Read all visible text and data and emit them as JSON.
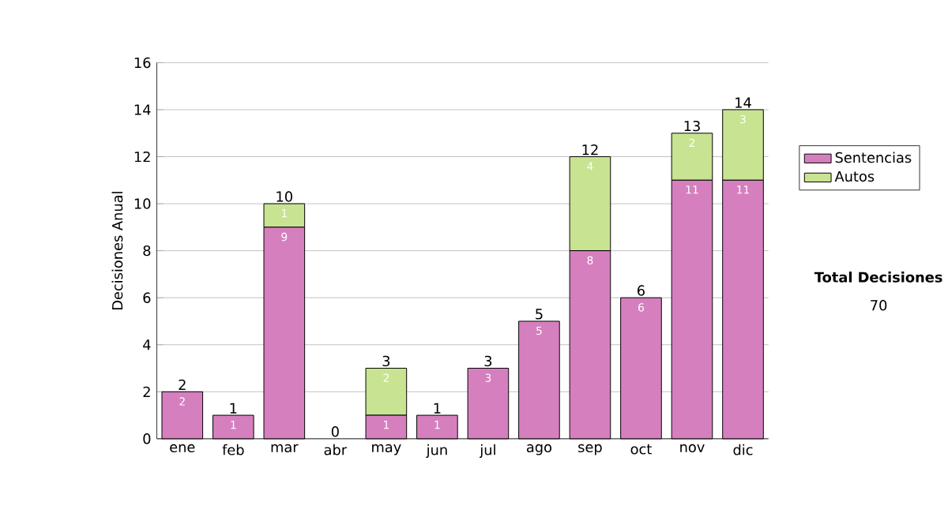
{
  "chart_data": {
    "type": "bar",
    "stacked": true,
    "ylabel": "Decisiones Anual",
    "categories": [
      "ene",
      "feb",
      "mar",
      "abr",
      "may",
      "jun",
      "jul",
      "ago",
      "sep",
      "oct",
      "nov",
      "dic"
    ],
    "series": [
      {
        "name": "Sentencias",
        "color": "#d67fbf",
        "values": [
          2,
          1,
          9,
          0,
          1,
          1,
          3,
          5,
          8,
          6,
          11,
          11
        ],
        "value_labels": [
          "2",
          "1",
          "9",
          null,
          "1",
          "1",
          "3",
          "5",
          "8",
          "6",
          "11",
          "11"
        ]
      },
      {
        "name": "Autos",
        "color": "#c8e391",
        "values": [
          0,
          0,
          1,
          0,
          2,
          0,
          0,
          0,
          4,
          0,
          2,
          3
        ],
        "value_labels": [
          null,
          null,
          "1",
          null,
          "2",
          null,
          null,
          null,
          "4",
          null,
          "2",
          "3"
        ]
      }
    ],
    "totals": [
      "2",
      "1",
      "10",
      "0",
      "3",
      "1",
      "3",
      "5",
      "12",
      "6",
      "13",
      "14"
    ],
    "ylim": [
      0,
      16
    ],
    "yticks": [
      0,
      2,
      4,
      6,
      8,
      10,
      12,
      14,
      16
    ],
    "grid": "y",
    "legend": "right",
    "annotations": [
      "Total Decisiones",
      "70"
    ]
  }
}
